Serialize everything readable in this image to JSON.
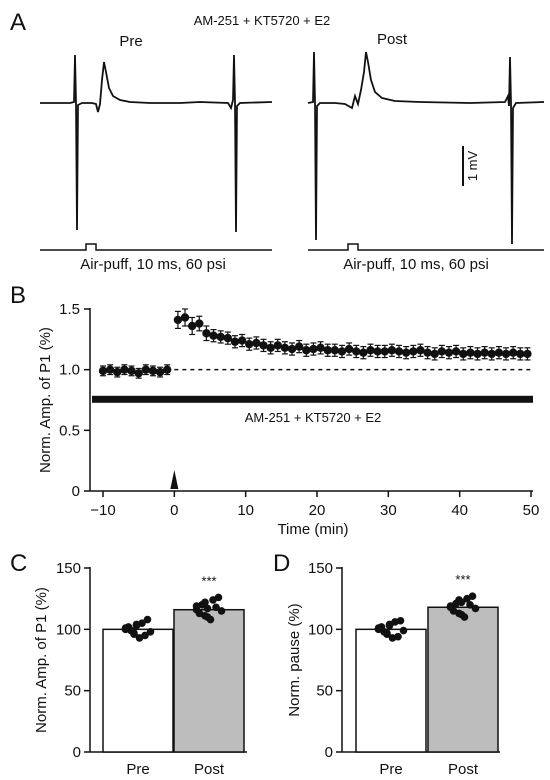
{
  "panels": {
    "a": "A",
    "b": "B",
    "c": "C",
    "d": "D"
  },
  "panel_a": {
    "condition": "AM-251 + KT5720 + E2",
    "pre_label": "Pre",
    "post_label": "Post",
    "scale_bar_label": "1 mV",
    "stim_label": "Air-puff, 10 ms, 60 psi"
  },
  "chart_data": [
    {
      "type": "scatter",
      "panel": "B",
      "title": "",
      "xlabel": "Time (min)",
      "ylabel": "Norm. Amp. of P1 (%)",
      "xlim": [
        -10,
        50
      ],
      "ylim": [
        0,
        1.5
      ],
      "x_ticks": [
        "−10",
        "0",
        "10",
        "20",
        "30",
        "40",
        "50"
      ],
      "y_ticks": [
        "0",
        "0.5",
        "1.0",
        "1.5"
      ],
      "annotation": "AM-251 + KT5720 + E2",
      "reference_line": 1.0,
      "drug_bar_level": 0.76,
      "stim_marker_x": 0,
      "series": [
        {
          "name": "",
          "x": [
            -10,
            -9,
            -8,
            -7,
            -6,
            -5,
            -4,
            -3,
            -2,
            -1,
            0.5,
            1.5,
            2.5,
            3.5,
            4.5,
            5.5,
            6.5,
            7.5,
            8.5,
            9.5,
            10.5,
            11.5,
            12.5,
            13.5,
            14.5,
            15.5,
            16.5,
            17.5,
            18.5,
            19.5,
            20.5,
            21.5,
            22.5,
            23.5,
            24.5,
            25.5,
            26.5,
            27.5,
            28.5,
            29.5,
            30.5,
            31.5,
            32.5,
            33.5,
            34.5,
            35.5,
            36.5,
            37.5,
            38.5,
            39.5,
            40.5,
            41.5,
            42.5,
            43.5,
            44.5,
            45.5,
            46.5,
            47.5,
            48.5,
            49.5
          ],
          "y": [
            0.99,
            1.0,
            0.98,
            1.0,
            0.99,
            0.97,
            1.0,
            0.99,
            0.98,
            1.0,
            1.41,
            1.43,
            1.36,
            1.38,
            1.3,
            1.28,
            1.27,
            1.26,
            1.23,
            1.24,
            1.21,
            1.22,
            1.2,
            1.18,
            1.2,
            1.18,
            1.17,
            1.19,
            1.16,
            1.17,
            1.18,
            1.16,
            1.16,
            1.15,
            1.17,
            1.15,
            1.14,
            1.16,
            1.15,
            1.15,
            1.16,
            1.15,
            1.14,
            1.15,
            1.16,
            1.14,
            1.13,
            1.15,
            1.14,
            1.15,
            1.13,
            1.14,
            1.13,
            1.14,
            1.13,
            1.14,
            1.13,
            1.14,
            1.13,
            1.13
          ],
          "error": [
            0.04,
            0.04,
            0.04,
            0.04,
            0.04,
            0.04,
            0.04,
            0.04,
            0.04,
            0.04,
            0.07,
            0.07,
            0.07,
            0.06,
            0.06,
            0.05,
            0.05,
            0.05,
            0.05,
            0.05,
            0.05,
            0.05,
            0.05,
            0.05,
            0.05,
            0.05,
            0.05,
            0.05,
            0.05,
            0.05,
            0.05,
            0.05,
            0.05,
            0.05,
            0.05,
            0.05,
            0.05,
            0.05,
            0.05,
            0.05,
            0.05,
            0.05,
            0.05,
            0.05,
            0.05,
            0.05,
            0.05,
            0.05,
            0.05,
            0.05,
            0.05,
            0.05,
            0.05,
            0.05,
            0.05,
            0.05,
            0.05,
            0.05,
            0.05,
            0.05
          ]
        }
      ]
    },
    {
      "type": "bar",
      "panel": "C",
      "title": "",
      "xlabel": "",
      "ylabel": "Norm. Amp. of P1 (%)",
      "ylim": [
        0,
        150
      ],
      "y_ticks": [
        "0",
        "50",
        "100",
        "150"
      ],
      "categories": [
        "Pre",
        "Post"
      ],
      "values": [
        100,
        116
      ],
      "bar_colors": [
        "#ffffff",
        "#bdbdbd"
      ],
      "significance": [
        "",
        "***"
      ],
      "points": [
        [
          100,
          97,
          103,
          95,
          108,
          102,
          99,
          93,
          105,
          98,
          101,
          96,
          104
        ],
        [
          116,
          122,
          110,
          118,
          126,
          113,
          120,
          108,
          124,
          115,
          119,
          111,
          117
        ]
      ]
    },
    {
      "type": "bar",
      "panel": "D",
      "title": "",
      "xlabel": "",
      "ylabel": "Norm. pause (%)",
      "ylim": [
        0,
        150
      ],
      "y_ticks": [
        "0",
        "50",
        "100",
        "150"
      ],
      "categories": [
        "Pre",
        "Post"
      ],
      "values": [
        100,
        118
      ],
      "bar_colors": [
        "#ffffff",
        "#bdbdbd"
      ],
      "significance": [
        "",
        "***"
      ],
      "points": [
        [
          100,
          96,
          104,
          94,
          107,
          102,
          98,
          93,
          106,
          99,
          101,
          97,
          103
        ],
        [
          118,
          124,
          112,
          120,
          127,
          115,
          121,
          110,
          125,
          117,
          119,
          113,
          122
        ]
      ]
    }
  ]
}
